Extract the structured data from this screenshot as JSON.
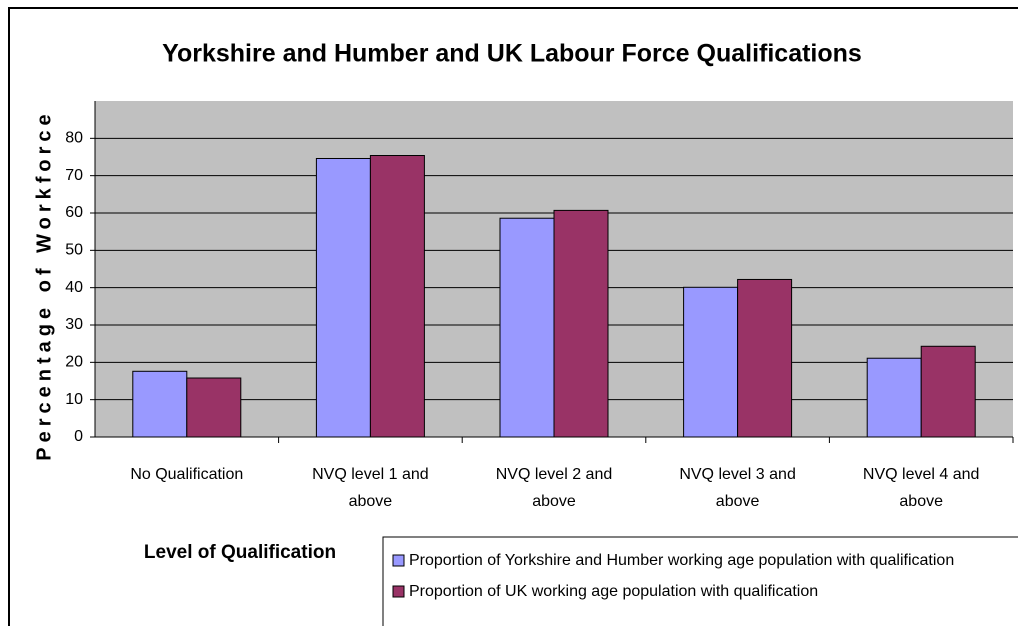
{
  "chart_data": {
    "type": "bar",
    "title": "Yorkshire and Humber and UK Labour Force Qualifications",
    "x_label": "Level of Qualification",
    "y_label": "Percentage of Workforce",
    "categories": [
      "No Qualification",
      "NVQ level 1 and above",
      "NVQ level 2 and above",
      "NVQ level 3 and above",
      "NVQ level 4 and above"
    ],
    "series": [
      {
        "name": "Proportion of Yorkshire and Humber working age population with qualification",
        "color": "#9999ff",
        "values": [
          17.6,
          74.6,
          58.6,
          40.1,
          21.1
        ]
      },
      {
        "name": "Proportion of UK working age population with qualification",
        "color": "#993366",
        "values": [
          15.8,
          75.4,
          60.7,
          42.2,
          24.3
        ]
      }
    ],
    "ylim": [
      0,
      90
    ],
    "yticks": [
      0,
      10,
      20,
      30,
      40,
      50,
      60,
      70,
      80
    ],
    "grid": true
  }
}
